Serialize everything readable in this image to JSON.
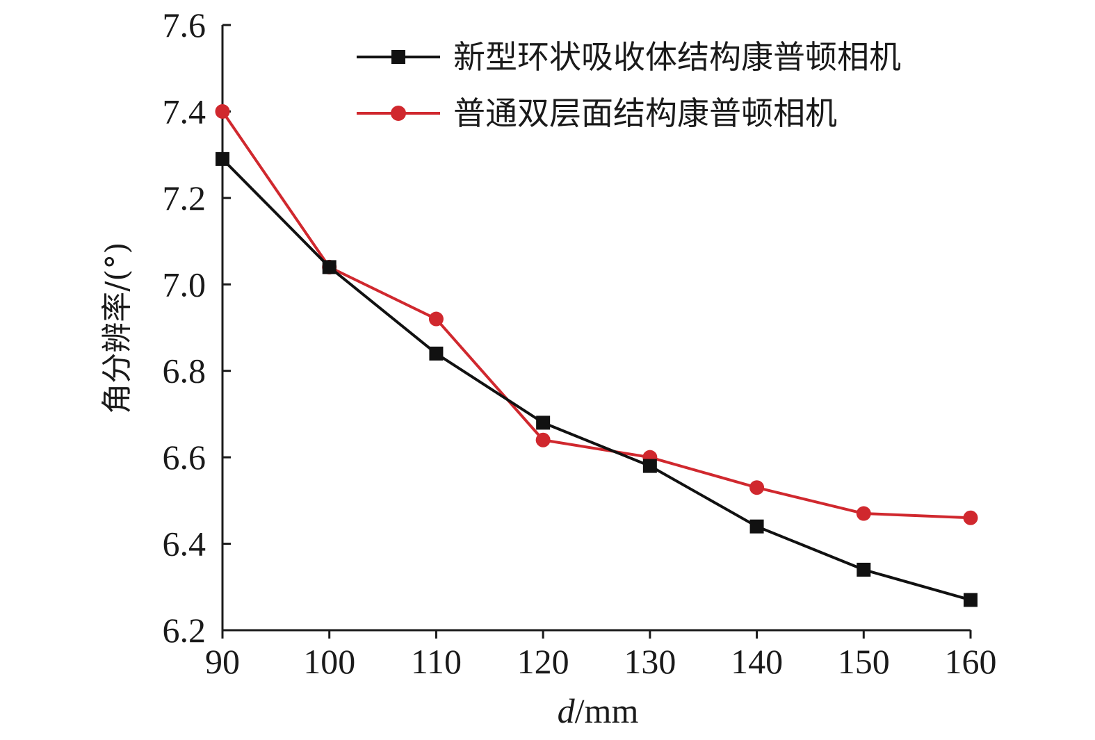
{
  "chart_data": {
    "type": "line",
    "xlabel_italic": "d",
    "xlabel_unit": "/mm",
    "ylabel": "角分辨率/(°)",
    "xlim": [
      90,
      160
    ],
    "ylim": [
      6.2,
      7.6
    ],
    "x_ticks": [
      90,
      100,
      110,
      120,
      130,
      140,
      150,
      160
    ],
    "y_ticks": [
      "6.2",
      "6.4",
      "6.6",
      "6.8",
      "7.0",
      "7.2",
      "7.4",
      "7.6"
    ],
    "x": [
      90,
      100,
      110,
      120,
      130,
      140,
      150,
      160
    ],
    "series": [
      {
        "name": "新型环状吸收体结构康普顿相机",
        "color": "#111111",
        "marker": "square",
        "values": [
          7.29,
          7.04,
          6.84,
          6.68,
          6.58,
          6.44,
          6.34,
          6.27
        ]
      },
      {
        "name": "普通双层面结构康普顿相机",
        "color": "#d0282e",
        "marker": "circle",
        "values": [
          7.4,
          7.04,
          6.92,
          6.64,
          6.6,
          6.53,
          6.47,
          6.46
        ]
      }
    ],
    "grid": false,
    "legend_position": "top-right"
  }
}
